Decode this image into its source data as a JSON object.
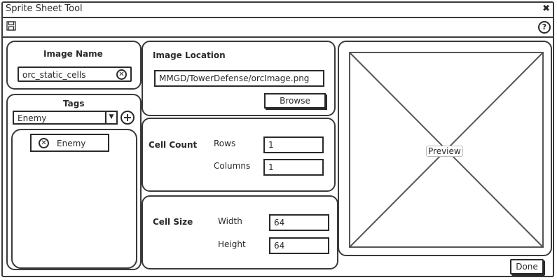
{
  "window": {
    "title": "Sprite Sheet Tool"
  },
  "toolbar": {
    "help_label": "?"
  },
  "image_name": {
    "label": "Image Name",
    "value": "orc_static_cells"
  },
  "tags": {
    "label": "Tags",
    "dropdown_value": "Enemy",
    "items": [
      "Enemy"
    ]
  },
  "image_location": {
    "label": "Image Location",
    "value": "MMGD/TowerDefense/orcImage.png",
    "browse_label": "Browse"
  },
  "cell_count": {
    "label": "Cell Count",
    "rows_label": "Rows",
    "rows_value": "1",
    "columns_label": "Columns",
    "columns_value": "1"
  },
  "cell_size": {
    "label": "Cell Size",
    "width_label": "Width",
    "width_value": "64",
    "height_label": "Height",
    "height_value": "64"
  },
  "preview": {
    "label": "Preview"
  },
  "footer": {
    "done_label": "Done"
  }
}
